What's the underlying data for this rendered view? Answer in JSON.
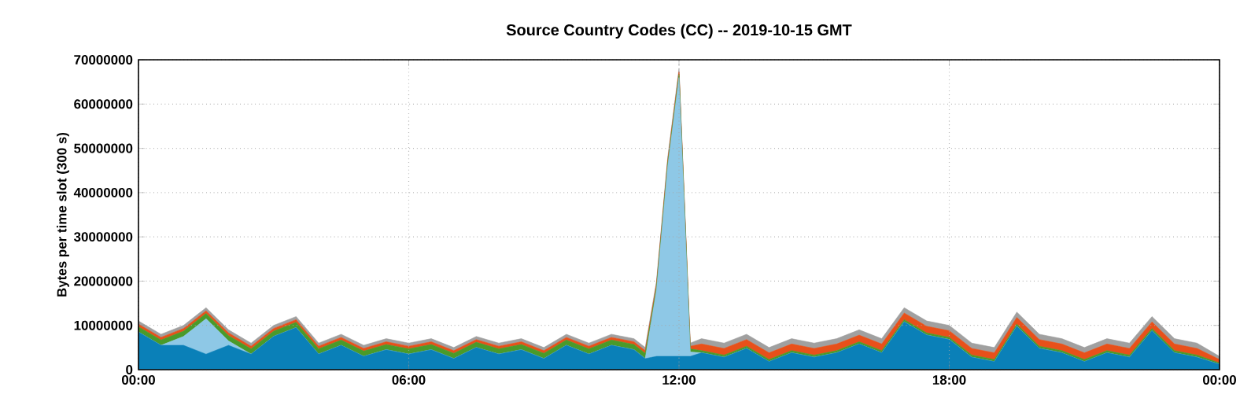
{
  "chart_data": {
    "type": "area",
    "stacked": true,
    "title": "Source Country Codes (CC) -- 2019-10-15 GMT",
    "ylabel": "Bytes per time slot (300 s)",
    "x": [
      0,
      0.5,
      1,
      1.5,
      2,
      2.5,
      3,
      3.5,
      4,
      4.5,
      5,
      5.5,
      6,
      6.5,
      7,
      7.5,
      8,
      8.5,
      9,
      9.5,
      10,
      10.5,
      11,
      11.25,
      11.5,
      11.75,
      12,
      12.25,
      12.5,
      13,
      13.5,
      14,
      14.5,
      15,
      15.5,
      16,
      16.5,
      17,
      17.5,
      18,
      18.5,
      19,
      19.5,
      20,
      20.5,
      21,
      21.5,
      22,
      22.5,
      23,
      23.5,
      24
    ],
    "series": [
      {
        "color": "#0a80b8",
        "values": [
          8500000,
          5500000,
          5500000,
          3500000,
          5500000,
          3500000,
          7500000,
          9500000,
          3500000,
          5500000,
          3000000,
          4500000,
          3500000,
          4500000,
          2500000,
          5000000,
          3500000,
          4500000,
          2500000,
          5500000,
          3500000,
          5500000,
          4500000,
          2500000,
          3000000,
          3000000,
          3000000,
          3000000,
          3800000,
          2800000,
          4800000,
          1800000,
          3800000,
          2800000,
          3800000,
          5800000,
          3800000,
          10800000,
          7800000,
          6800000,
          2800000,
          1800000,
          9800000,
          4800000,
          3800000,
          1800000,
          3800000,
          2800000,
          8800000,
          3800000,
          2800000,
          1200000
        ]
      },
      {
        "color": "#8ec8e6",
        "values": [
          0,
          0,
          2000000,
          8000000,
          1000000,
          0,
          0,
          0,
          0,
          0,
          0,
          0,
          0,
          0,
          0,
          0,
          0,
          0,
          0,
          0,
          0,
          0,
          0,
          0,
          15000000,
          43000000,
          63000000,
          1000000,
          0,
          0,
          0,
          0,
          0,
          0,
          0,
          0,
          0,
          0,
          0,
          0,
          0,
          0,
          0,
          0,
          0,
          0,
          0,
          0,
          0,
          0,
          0,
          0
        ]
      },
      {
        "color": "#4a9a2a",
        "values": [
          1200000,
          1200000,
          1200000,
          1200000,
          1200000,
          1200000,
          1200000,
          1200000,
          1200000,
          1200000,
          1200000,
          1200000,
          1200000,
          1200000,
          1200000,
          1200000,
          1200000,
          1200000,
          1200000,
          1200000,
          1200000,
          1200000,
          1200000,
          1200000,
          700000,
          700000,
          700000,
          700000,
          500000,
          500000,
          500000,
          500000,
          500000,
          500000,
          500000,
          500000,
          500000,
          500000,
          500000,
          500000,
          500000,
          500000,
          500000,
          500000,
          500000,
          500000,
          500000,
          500000,
          500000,
          500000,
          500000,
          300000
        ]
      },
      {
        "color": "#e8501a",
        "values": [
          600000,
          600000,
          600000,
          600000,
          600000,
          600000,
          600000,
          600000,
          600000,
          600000,
          600000,
          600000,
          600000,
          600000,
          600000,
          600000,
          600000,
          600000,
          600000,
          600000,
          600000,
          600000,
          600000,
          600000,
          600000,
          600000,
          600000,
          600000,
          1500000,
          1500000,
          1500000,
          1500000,
          1500000,
          1500000,
          1500000,
          1500000,
          1500000,
          1500000,
          1500000,
          1500000,
          1500000,
          1500000,
          1500000,
          1500000,
          1500000,
          1500000,
          1500000,
          1500000,
          1500000,
          1500000,
          1500000,
          800000
        ]
      },
      {
        "color": "#a0a0a0",
        "values": [
          700000,
          700000,
          700000,
          700000,
          700000,
          700000,
          700000,
          700000,
          700000,
          700000,
          700000,
          700000,
          700000,
          700000,
          700000,
          700000,
          700000,
          700000,
          700000,
          700000,
          700000,
          700000,
          700000,
          700000,
          700000,
          700000,
          700000,
          700000,
          1200000,
          1200000,
          1200000,
          1200000,
          1200000,
          1200000,
          1200000,
          1200000,
          1200000,
          1200000,
          1200000,
          1200000,
          1200000,
          1200000,
          1200000,
          1200000,
          1200000,
          1200000,
          1200000,
          1200000,
          1200000,
          1200000,
          1200000,
          700000
        ]
      }
    ],
    "xlim": [
      0,
      24
    ],
    "ylim": [
      0,
      70000000
    ],
    "xticks": [
      {
        "value": 0,
        "label": "00:00"
      },
      {
        "value": 6,
        "label": "06:00"
      },
      {
        "value": 12,
        "label": "12:00"
      },
      {
        "value": 18,
        "label": "18:00"
      },
      {
        "value": 24,
        "label": "00:00"
      }
    ],
    "yticks": [
      0,
      10000000,
      20000000,
      30000000,
      40000000,
      50000000,
      60000000,
      70000000
    ],
    "grid": true
  }
}
